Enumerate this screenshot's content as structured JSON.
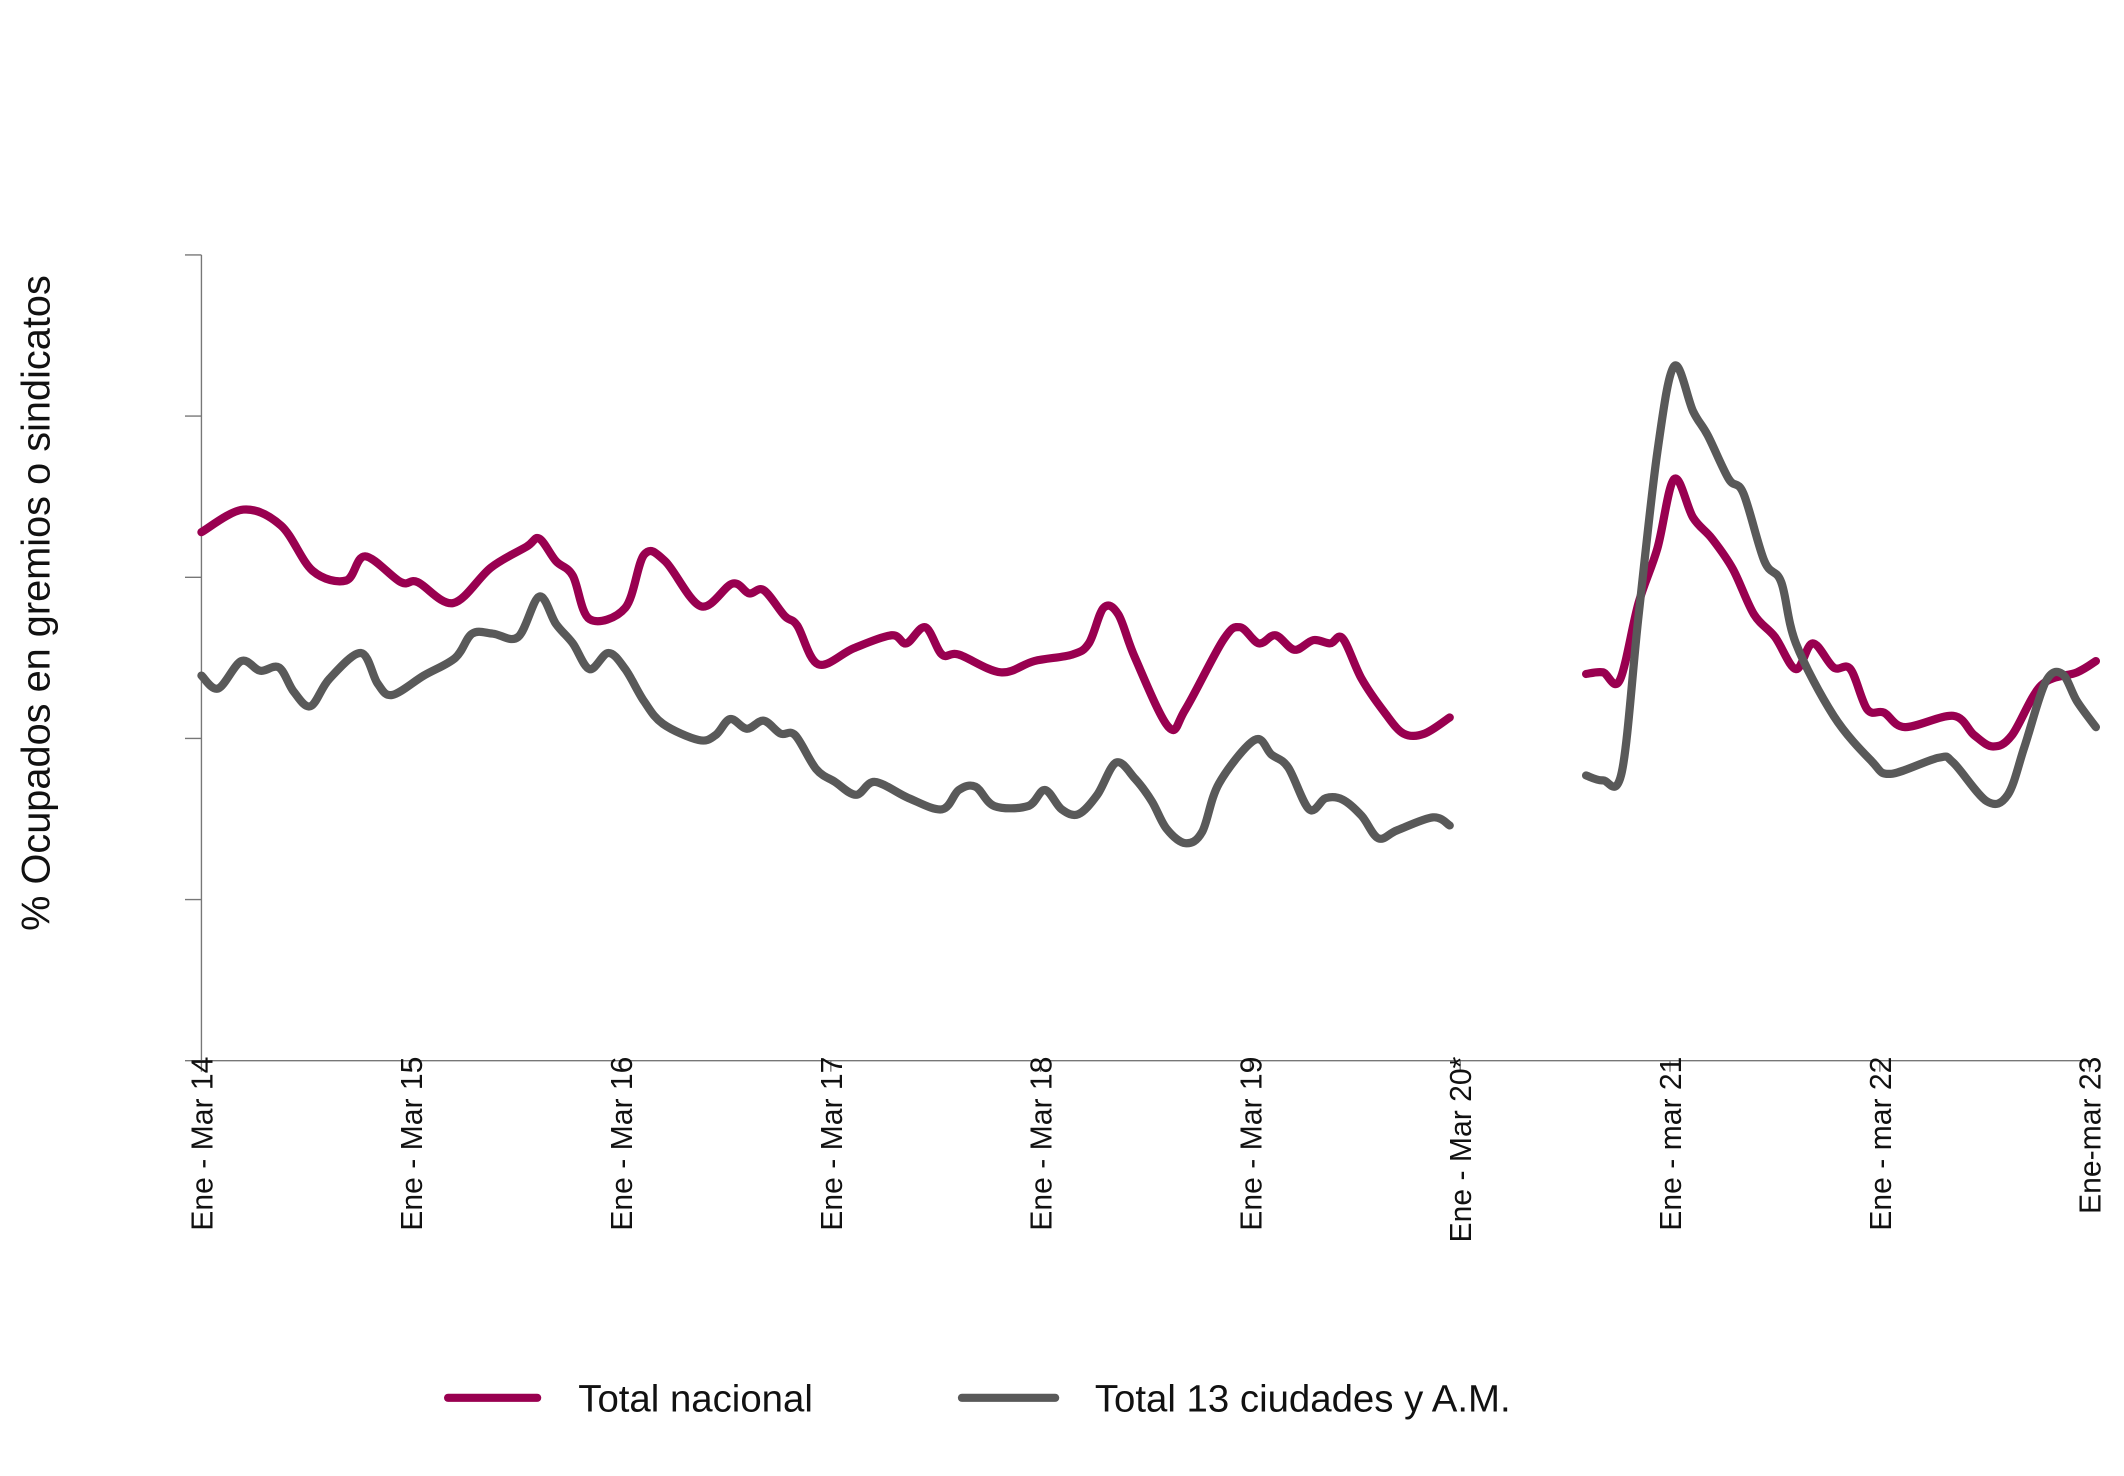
{
  "chart_data": {
    "type": "line",
    "title": "",
    "xlabel": "",
    "ylabel": "%  Ocupados en gremios o sindicatos",
    "x_unit": "years since Ene - Mar 14",
    "xlim": [
      0,
      9
    ],
    "ylim": [
      0,
      5
    ],
    "y_tick_count": 6,
    "y_tick_labels_shown": false,
    "grid": false,
    "legend_position": "bottom",
    "x_ticks": [
      {
        "x": 0,
        "label": "Ene - Mar 14"
      },
      {
        "x": 1,
        "label": "Ene - Mar 15"
      },
      {
        "x": 2,
        "label": "Ene - Mar  16"
      },
      {
        "x": 3,
        "label": "Ene - Mar 17"
      },
      {
        "x": 4,
        "label": "Ene - Mar 18"
      },
      {
        "x": 5,
        "label": "Ene - Mar 19"
      },
      {
        "x": 6,
        "label": "Ene - Mar 20*"
      },
      {
        "x": 7,
        "label": "Ene - mar 21"
      },
      {
        "x": 8,
        "label": "Ene - mar 22"
      },
      {
        "x": 9,
        "label": "Ene-mar 23"
      }
    ],
    "series": [
      {
        "name": "Total nacional",
        "color": "#990050",
        "points": [
          [
            0,
            3.28
          ],
          [
            0.2,
            3.42
          ],
          [
            0.38,
            3.32
          ],
          [
            0.53,
            3.04
          ],
          [
            0.69,
            2.98
          ],
          [
            0.78,
            3.13
          ],
          [
            0.95,
            2.97
          ],
          [
            1.03,
            2.97
          ],
          [
            1.2,
            2.84
          ],
          [
            1.38,
            3.06
          ],
          [
            1.55,
            3.19
          ],
          [
            1.61,
            3.24
          ],
          [
            1.69,
            3.1
          ],
          [
            1.77,
            3.01
          ],
          [
            1.85,
            2.74
          ],
          [
            2.02,
            2.81
          ],
          [
            2.11,
            3.14
          ],
          [
            2.21,
            3.1
          ],
          [
            2.38,
            2.82
          ],
          [
            2.53,
            2.96
          ],
          [
            2.61,
            2.9
          ],
          [
            2.68,
            2.92
          ],
          [
            2.78,
            2.76
          ],
          [
            2.84,
            2.7
          ],
          [
            2.94,
            2.46
          ],
          [
            3.11,
            2.56
          ],
          [
            3.29,
            2.64
          ],
          [
            3.36,
            2.59
          ],
          [
            3.45,
            2.69
          ],
          [
            3.53,
            2.52
          ],
          [
            3.61,
            2.52
          ],
          [
            3.81,
            2.41
          ],
          [
            3.97,
            2.48
          ],
          [
            4.15,
            2.52
          ],
          [
            4.23,
            2.59
          ],
          [
            4.3,
            2.81
          ],
          [
            4.37,
            2.77
          ],
          [
            4.45,
            2.5
          ],
          [
            4.61,
            2.07
          ],
          [
            4.69,
            2.18
          ],
          [
            4.87,
            2.61
          ],
          [
            4.95,
            2.69
          ],
          [
            5.04,
            2.59
          ],
          [
            5.12,
            2.64
          ],
          [
            5.21,
            2.55
          ],
          [
            5.3,
            2.61
          ],
          [
            5.38,
            2.59
          ],
          [
            5.44,
            2.62
          ],
          [
            5.53,
            2.37
          ],
          [
            5.64,
            2.16
          ],
          [
            5.73,
            2.03
          ],
          [
            5.83,
            2.03
          ],
          [
            5.95,
            2.13
          ],
          null,
          [
            6.6,
            2.4
          ],
          [
            6.68,
            2.41
          ],
          [
            6.76,
            2.36
          ],
          [
            6.85,
            2.84
          ],
          [
            6.94,
            3.18
          ],
          [
            7.02,
            3.61
          ],
          [
            7.11,
            3.37
          ],
          [
            7.2,
            3.24
          ],
          [
            7.3,
            3.05
          ],
          [
            7.4,
            2.77
          ],
          [
            7.5,
            2.63
          ],
          [
            7.6,
            2.43
          ],
          [
            7.68,
            2.59
          ],
          [
            7.78,
            2.44
          ],
          [
            7.86,
            2.43
          ],
          [
            7.94,
            2.18
          ],
          [
            8.02,
            2.16
          ],
          [
            8.12,
            2.07
          ],
          [
            8.35,
            2.14
          ],
          [
            8.45,
            2.02
          ],
          [
            8.54,
            1.95
          ],
          [
            8.63,
            2.02
          ],
          [
            8.77,
            2.33
          ],
          [
            8.94,
            2.41
          ],
          [
            9.03,
            2.48
          ]
        ]
      },
      {
        "name": "Total 13 ciudades y A.M.",
        "color": "#595959",
        "points": [
          [
            0,
            2.39
          ],
          [
            0.08,
            2.31
          ],
          [
            0.19,
            2.48
          ],
          [
            0.28,
            2.42
          ],
          [
            0.37,
            2.44
          ],
          [
            0.44,
            2.29
          ],
          [
            0.52,
            2.2
          ],
          [
            0.61,
            2.37
          ],
          [
            0.76,
            2.53
          ],
          [
            0.84,
            2.34
          ],
          [
            0.91,
            2.27
          ],
          [
            1.06,
            2.39
          ],
          [
            1.21,
            2.5
          ],
          [
            1.29,
            2.65
          ],
          [
            1.39,
            2.65
          ],
          [
            1.51,
            2.63
          ],
          [
            1.61,
            2.88
          ],
          [
            1.69,
            2.71
          ],
          [
            1.77,
            2.59
          ],
          [
            1.85,
            2.43
          ],
          [
            1.94,
            2.53
          ],
          [
            2.02,
            2.43
          ],
          [
            2.11,
            2.23
          ],
          [
            2.2,
            2.09
          ],
          [
            2.37,
            1.99
          ],
          [
            2.45,
            2.02
          ],
          [
            2.52,
            2.12
          ],
          [
            2.6,
            2.06
          ],
          [
            2.68,
            2.11
          ],
          [
            2.76,
            2.03
          ],
          [
            2.83,
            2.02
          ],
          [
            2.93,
            1.81
          ],
          [
            3.02,
            1.73
          ],
          [
            3.12,
            1.65
          ],
          [
            3.21,
            1.73
          ],
          [
            3.37,
            1.63
          ],
          [
            3.53,
            1.56
          ],
          [
            3.61,
            1.68
          ],
          [
            3.69,
            1.7
          ],
          [
            3.78,
            1.58
          ],
          [
            3.94,
            1.58
          ],
          [
            4.02,
            1.68
          ],
          [
            4.1,
            1.56
          ],
          [
            4.18,
            1.53
          ],
          [
            4.27,
            1.65
          ],
          [
            4.36,
            1.85
          ],
          [
            4.45,
            1.75
          ],
          [
            4.53,
            1.61
          ],
          [
            4.6,
            1.44
          ],
          [
            4.69,
            1.35
          ],
          [
            4.77,
            1.42
          ],
          [
            4.85,
            1.72
          ],
          [
            5.02,
            1.99
          ],
          [
            5.1,
            1.9
          ],
          [
            5.18,
            1.82
          ],
          [
            5.28,
            1.56
          ],
          [
            5.36,
            1.63
          ],
          [
            5.44,
            1.62
          ],
          [
            5.53,
            1.52
          ],
          [
            5.61,
            1.38
          ],
          [
            5.7,
            1.43
          ],
          [
            5.87,
            1.51
          ],
          [
            5.95,
            1.46
          ],
          null,
          [
            6.6,
            1.77
          ],
          [
            6.68,
            1.74
          ],
          [
            6.77,
            1.79
          ],
          [
            6.85,
            2.76
          ],
          [
            6.94,
            3.78
          ],
          [
            7.02,
            4.31
          ],
          [
            7.11,
            4.03
          ],
          [
            7.18,
            3.88
          ],
          [
            7.28,
            3.61
          ],
          [
            7.35,
            3.52
          ],
          [
            7.45,
            3.1
          ],
          [
            7.53,
            2.97
          ],
          [
            7.6,
            2.59
          ],
          [
            7.78,
            2.14
          ],
          [
            7.96,
            1.86
          ],
          [
            8.05,
            1.78
          ],
          [
            8.28,
            1.88
          ],
          [
            8.35,
            1.85
          ],
          [
            8.51,
            1.61
          ],
          [
            8.61,
            1.65
          ],
          [
            8.69,
            1.95
          ],
          [
            8.79,
            2.35
          ],
          [
            8.87,
            2.4
          ],
          [
            8.94,
            2.23
          ],
          [
            9.03,
            2.07
          ]
        ]
      }
    ]
  }
}
